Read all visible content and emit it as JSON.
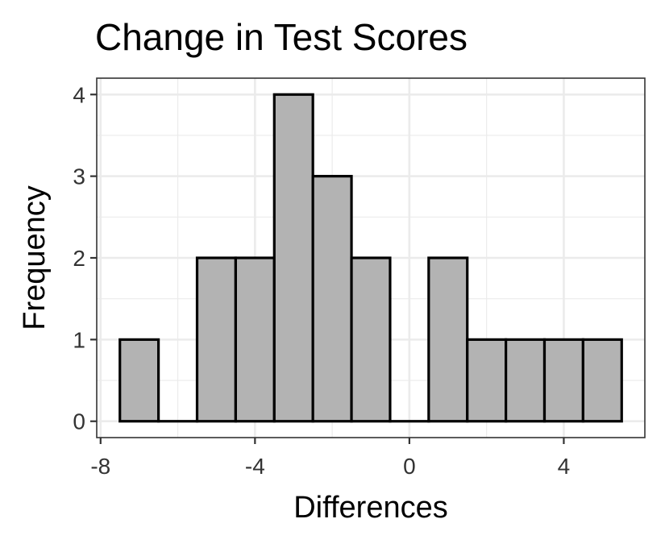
{
  "chart_data": {
    "type": "bar",
    "title": "Change in Test Scores",
    "xlabel": "Differences",
    "ylabel": "Frequency",
    "bins": [
      {
        "x0": -7.5,
        "x1": -6.5,
        "count": 1
      },
      {
        "x0": -6.5,
        "x1": -5.5,
        "count": 0
      },
      {
        "x0": -5.5,
        "x1": -4.5,
        "count": 2
      },
      {
        "x0": -4.5,
        "x1": -3.5,
        "count": 2
      },
      {
        "x0": -3.5,
        "x1": -2.5,
        "count": 4
      },
      {
        "x0": -2.5,
        "x1": -1.5,
        "count": 3
      },
      {
        "x0": -1.5,
        "x1": -0.5,
        "count": 2
      },
      {
        "x0": -0.5,
        "x1": 0.5,
        "count": 0
      },
      {
        "x0": 0.5,
        "x1": 1.5,
        "count": 2
      },
      {
        "x0": 1.5,
        "x1": 2.5,
        "count": 1
      },
      {
        "x0": 2.5,
        "x1": 3.5,
        "count": 1
      },
      {
        "x0": 3.5,
        "x1": 4.5,
        "count": 1
      },
      {
        "x0": 4.5,
        "x1": 5.5,
        "count": 1
      }
    ],
    "xlim": [
      -8.1,
      6.1
    ],
    "ylim": [
      -0.2,
      4.2
    ],
    "x_ticks": [
      -8,
      -4,
      0,
      4
    ],
    "x_tick_labels": [
      "-8",
      "-4",
      "0",
      "4"
    ],
    "x_minor_gridlines": [
      -6,
      -2,
      2
    ],
    "y_ticks": [
      0,
      1,
      2,
      3,
      4
    ],
    "y_tick_labels": [
      "0",
      "1",
      "2",
      "3",
      "4"
    ],
    "y_minor_gridlines": [
      0.5,
      1.5,
      2.5,
      3.5
    ],
    "grid": true,
    "bar_fill": "#b3b3b3",
    "bar_stroke": "#000000",
    "gridline_color": "#ebebeb",
    "panel_border_color": "#333333"
  }
}
